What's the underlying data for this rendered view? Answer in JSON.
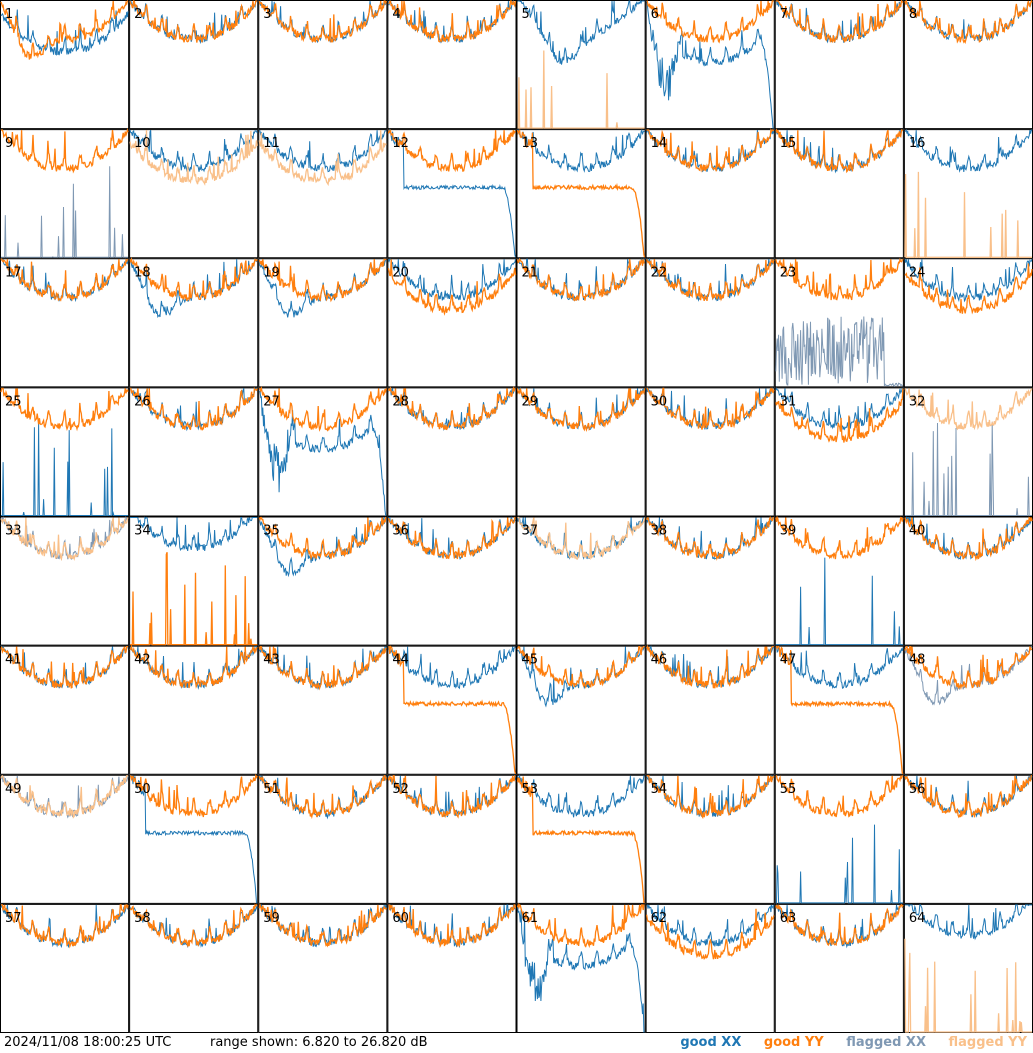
{
  "chart_data": {
    "type": "line",
    "layout": "small-multiples 8x8",
    "description": "Per-tile bandpass spectra (XX and YY polarisations) for 64 antenna tiles",
    "timestamp": "2024/11/08 18:00:25 UTC",
    "range_text": "range shown: 6.820 to 26.820 dB",
    "ylim_db": [
      6.82,
      26.82
    ],
    "x_axis": "frequency channel (normalized 0-1)",
    "legend": {
      "position": "bottom-right",
      "items": [
        {
          "label": "good XX",
          "color": "#1f77b4"
        },
        {
          "label": "good YY",
          "color": "#ff7f0e"
        },
        {
          "label": "flagged XX",
          "color": "#7f98b3"
        },
        {
          "label": "flagged YY",
          "color": "#f9c08a"
        }
      ]
    },
    "colors": {
      "good_xx": "#1f77b4",
      "good_yy": "#ff7f0e",
      "flagged_xx": "#7f98b3",
      "flagged_yy": "#f9c08a"
    },
    "tiles": [
      {
        "id": "1",
        "xx": "low",
        "yy": "dip",
        "xx_flag": false,
        "yy_flag": false
      },
      {
        "id": "2",
        "xx": "normal",
        "yy": "normal",
        "xx_flag": false,
        "yy_flag": false
      },
      {
        "id": "3",
        "xx": "normal",
        "yy": "normal",
        "xx_flag": false,
        "yy_flag": false
      },
      {
        "id": "4",
        "xx": "normal",
        "yy": "normal",
        "xx_flag": false,
        "yy_flag": false
      },
      {
        "id": "5",
        "xx": "high_dip",
        "yy": "spikes",
        "xx_flag": false,
        "yy_flag": true
      },
      {
        "id": "6",
        "xx": "deep_drop",
        "yy": "normal",
        "xx_flag": false,
        "yy_flag": false
      },
      {
        "id": "7",
        "xx": "normal",
        "yy": "normal",
        "xx_flag": false,
        "yy_flag": false
      },
      {
        "id": "8",
        "xx": "normal",
        "yy": "normal",
        "xx_flag": false,
        "yy_flag": false
      },
      {
        "id": "9",
        "xx": "spikes",
        "yy": "normal",
        "xx_flag": true,
        "yy_flag": false
      },
      {
        "id": "10",
        "xx": "normal",
        "yy": "low",
        "xx_flag": false,
        "yy_flag": true
      },
      {
        "id": "11",
        "xx": "normal",
        "yy": "low",
        "xx_flag": false,
        "yy_flag": true
      },
      {
        "id": "12",
        "xx": "drop_end",
        "yy": "normal",
        "xx_flag": false,
        "yy_flag": false
      },
      {
        "id": "13",
        "xx": "normal",
        "yy": "drop_end",
        "xx_flag": false,
        "yy_flag": false
      },
      {
        "id": "14",
        "xx": "normal",
        "yy": "normal",
        "xx_flag": false,
        "yy_flag": false
      },
      {
        "id": "15",
        "xx": "normal",
        "yy": "normal",
        "xx_flag": false,
        "yy_flag": false
      },
      {
        "id": "16",
        "xx": "normal",
        "yy": "spikes",
        "xx_flag": false,
        "yy_flag": true
      },
      {
        "id": "17",
        "xx": "normal",
        "yy": "normal",
        "xx_flag": false,
        "yy_flag": false
      },
      {
        "id": "18",
        "xx": "dip",
        "yy": "normal",
        "xx_flag": false,
        "yy_flag": false
      },
      {
        "id": "19",
        "xx": "dip",
        "yy": "normal",
        "xx_flag": false,
        "yy_flag": false
      },
      {
        "id": "20",
        "xx": "normal",
        "yy": "low",
        "xx_flag": false,
        "yy_flag": false
      },
      {
        "id": "21",
        "xx": "normal",
        "yy": "normal",
        "xx_flag": false,
        "yy_flag": false
      },
      {
        "id": "22",
        "xx": "normal",
        "yy": "normal",
        "xx_flag": false,
        "yy_flag": false
      },
      {
        "id": "23",
        "xx": "noise",
        "yy": "normal",
        "xx_flag": true,
        "yy_flag": false
      },
      {
        "id": "24",
        "xx": "normal",
        "yy": "low",
        "xx_flag": false,
        "yy_flag": false
      },
      {
        "id": "25",
        "xx": "spikes",
        "yy": "normal",
        "xx_flag": false,
        "yy_flag": false
      },
      {
        "id": "26",
        "xx": "normal",
        "yy": "normal",
        "xx_flag": false,
        "yy_flag": false
      },
      {
        "id": "27",
        "xx": "deep_drop",
        "yy": "normal",
        "xx_flag": false,
        "yy_flag": false
      },
      {
        "id": "28",
        "xx": "normal",
        "yy": "normal",
        "xx_flag": false,
        "yy_flag": false
      },
      {
        "id": "29",
        "xx": "normal",
        "yy": "normal",
        "xx_flag": false,
        "yy_flag": false
      },
      {
        "id": "30",
        "xx": "normal",
        "yy": "normal",
        "xx_flag": false,
        "yy_flag": false
      },
      {
        "id": "31",
        "xx": "normal",
        "yy": "low",
        "xx_flag": false,
        "yy_flag": false
      },
      {
        "id": "32",
        "xx": "spikes",
        "yy": "normal",
        "xx_flag": true,
        "yy_flag": true
      },
      {
        "id": "33",
        "xx": "normal",
        "yy": "normal",
        "xx_flag": true,
        "yy_flag": true
      },
      {
        "id": "34",
        "xx": "high",
        "yy": "spikes",
        "xx_flag": false,
        "yy_flag": false
      },
      {
        "id": "35",
        "xx": "dip",
        "yy": "normal",
        "xx_flag": false,
        "yy_flag": false
      },
      {
        "id": "36",
        "xx": "normal",
        "yy": "normal",
        "xx_flag": false,
        "yy_flag": false
      },
      {
        "id": "37",
        "xx": "normal",
        "yy": "normal",
        "xx_flag": false,
        "yy_flag": true
      },
      {
        "id": "38",
        "xx": "normal",
        "yy": "normal",
        "xx_flag": false,
        "yy_flag": false
      },
      {
        "id": "39",
        "xx": "spikes",
        "yy": "normal",
        "xx_flag": false,
        "yy_flag": false
      },
      {
        "id": "40",
        "xx": "normal",
        "yy": "normal",
        "xx_flag": false,
        "yy_flag": false
      },
      {
        "id": "41",
        "xx": "normal",
        "yy": "normal",
        "xx_flag": false,
        "yy_flag": false
      },
      {
        "id": "42",
        "xx": "normal",
        "yy": "normal",
        "xx_flag": false,
        "yy_flag": false
      },
      {
        "id": "43",
        "xx": "normal",
        "yy": "normal",
        "xx_flag": false,
        "yy_flag": false
      },
      {
        "id": "44",
        "xx": "normal",
        "yy": "drop_end",
        "xx_flag": false,
        "yy_flag": false
      },
      {
        "id": "45",
        "xx": "dip",
        "yy": "normal",
        "xx_flag": false,
        "yy_flag": false
      },
      {
        "id": "46",
        "xx": "normal",
        "yy": "normal",
        "xx_flag": false,
        "yy_flag": false
      },
      {
        "id": "47",
        "xx": "normal",
        "yy": "drop_end",
        "xx_flag": false,
        "yy_flag": false
      },
      {
        "id": "48",
        "xx": "dip",
        "yy": "normal",
        "xx_flag": true,
        "yy_flag": false
      },
      {
        "id": "49",
        "xx": "normal",
        "yy": "normal",
        "xx_flag": true,
        "yy_flag": true
      },
      {
        "id": "50",
        "xx": "drop_end",
        "yy": "normal",
        "xx_flag": false,
        "yy_flag": false
      },
      {
        "id": "51",
        "xx": "normal",
        "yy": "normal",
        "xx_flag": false,
        "yy_flag": false
      },
      {
        "id": "52",
        "xx": "normal",
        "yy": "normal",
        "xx_flag": false,
        "yy_flag": false
      },
      {
        "id": "53",
        "xx": "normal",
        "yy": "drop_end",
        "xx_flag": false,
        "yy_flag": false
      },
      {
        "id": "54",
        "xx": "normal",
        "yy": "normal",
        "xx_flag": false,
        "yy_flag": false
      },
      {
        "id": "55",
        "xx": "spikes",
        "yy": "normal",
        "xx_flag": false,
        "yy_flag": false
      },
      {
        "id": "56",
        "xx": "normal",
        "yy": "normal",
        "xx_flag": false,
        "yy_flag": false
      },
      {
        "id": "57",
        "xx": "normal",
        "yy": "normal",
        "xx_flag": false,
        "yy_flag": false
      },
      {
        "id": "58",
        "xx": "normal",
        "yy": "normal",
        "xx_flag": false,
        "yy_flag": false
      },
      {
        "id": "59",
        "xx": "normal",
        "yy": "normal",
        "xx_flag": false,
        "yy_flag": false
      },
      {
        "id": "60",
        "xx": "normal",
        "yy": "normal",
        "xx_flag": false,
        "yy_flag": false
      },
      {
        "id": "61",
        "xx": "deep_drop",
        "yy": "normal",
        "xx_flag": false,
        "yy_flag": false
      },
      {
        "id": "62",
        "xx": "normal",
        "yy": "low",
        "xx_flag": false,
        "yy_flag": false
      },
      {
        "id": "63",
        "xx": "normal",
        "yy": "normal",
        "xx_flag": false,
        "yy_flag": false
      },
      {
        "id": "64",
        "xx": "high",
        "yy": "spikes",
        "xx_flag": false,
        "yy_flag": true
      }
    ]
  }
}
